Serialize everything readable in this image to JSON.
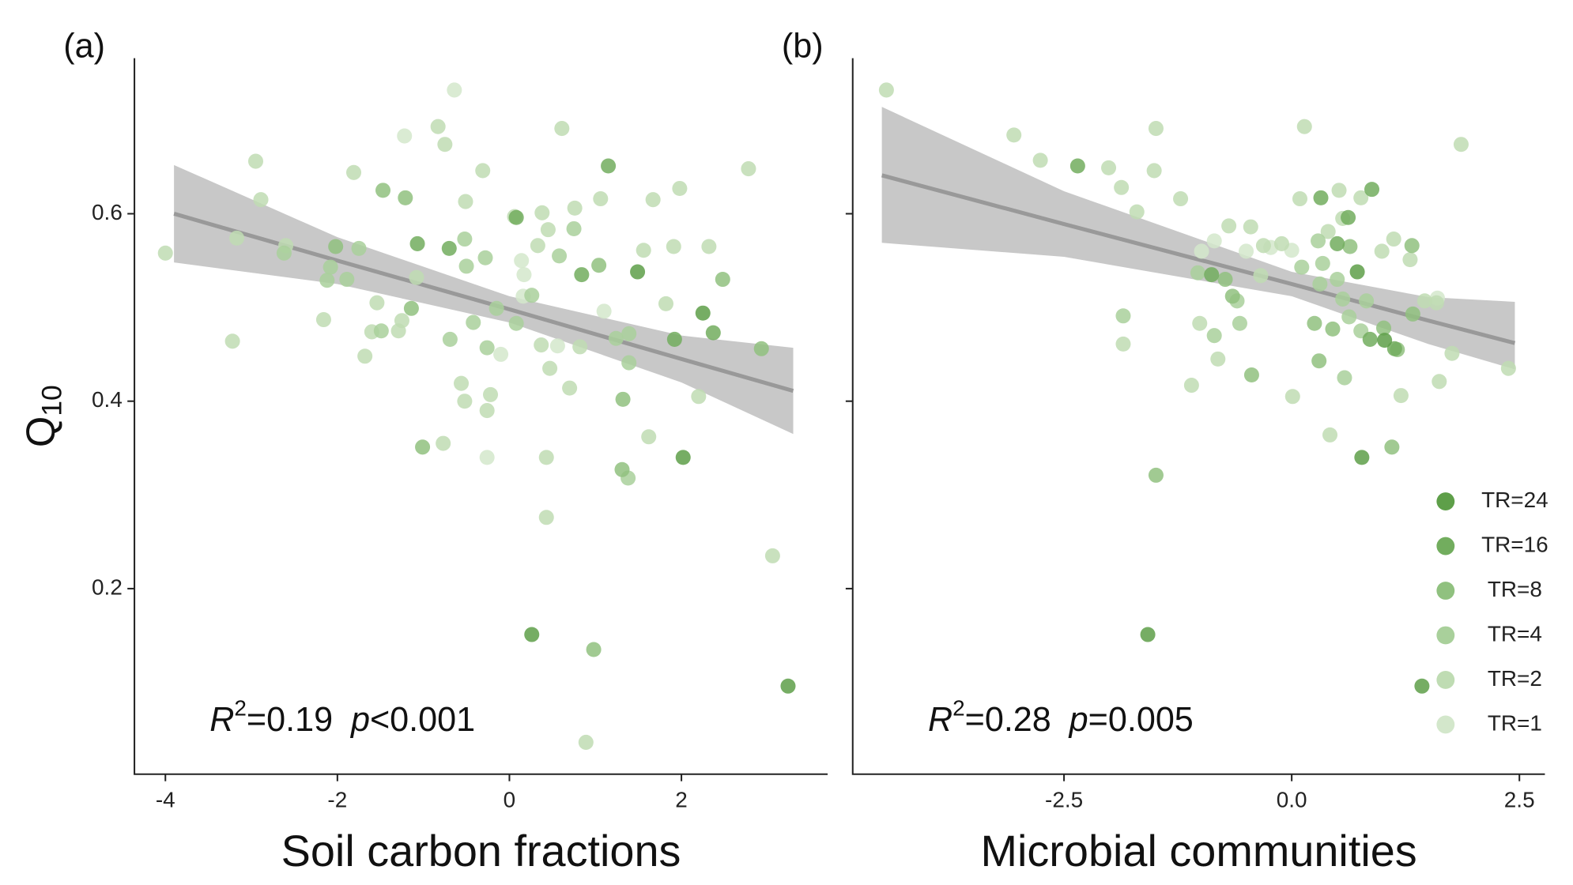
{
  "chart_data": [
    {
      "type": "scatter",
      "panel_label": "(a)",
      "xlabel": "Soil carbon fractions",
      "ylabel": "Q",
      "ylabel_sub": "10",
      "xlim": [
        -4.36,
        3.7
      ],
      "ylim": [
        0.002,
        0.766
      ],
      "xticks": [
        -4,
        -2,
        0,
        2
      ],
      "yticks": [
        0.2,
        0.4,
        0.6
      ],
      "annotation": [
        "R",
        "2",
        "=0.19",
        "p",
        "<0.001"
      ],
      "fit": {
        "color": "#999999",
        "band_color": "#c8c8c8",
        "x": [
          -3.9,
          -2,
          0,
          2,
          3.3
        ],
        "y": [
          0.6,
          0.55,
          0.498,
          0.445,
          0.411
        ],
        "lower": [
          0.548,
          0.525,
          0.484,
          0.42,
          0.365
        ],
        "upper": [
          0.652,
          0.575,
          0.512,
          0.47,
          0.457
        ]
      },
      "series": [
        {
          "color": "#5e9f49",
          "x": [
            0.26,
            2.02,
            3.24,
            1.49,
            2.25
          ],
          "values": [
            0.151,
            0.34,
            0.096,
            0.538,
            0.494
          ]
        },
        {
          "color": "#72ad5e",
          "x": [
            1.15,
            0.84,
            1.92,
            -0.7,
            -1.07,
            2.37,
            0.08
          ],
          "values": [
            0.651,
            0.535,
            0.466,
            0.563,
            0.568,
            0.473,
            0.596
          ]
        },
        {
          "color": "#90c17f",
          "x": [
            -1.47,
            -1.21,
            -2.02,
            1.32,
            1.31,
            0.98,
            -1.01,
            2.48,
            2.93,
            1.04,
            -1.14
          ],
          "values": [
            0.625,
            0.617,
            0.565,
            0.402,
            0.327,
            0.135,
            0.351,
            0.53,
            0.456,
            0.545,
            0.499
          ]
        },
        {
          "color": "#a9d09b",
          "x": [
            1.39,
            0.26,
            -0.42,
            0.08,
            -0.15,
            -0.26,
            -1.75,
            -1.49,
            1.39,
            -0.69,
            -0.28,
            1.24,
            0.58,
            0.75,
            -0.5,
            -2.08,
            -2.62,
            -2.12,
            -1.89,
            -0.52,
            1.38
          ],
          "values": [
            0.441,
            0.513,
            0.484,
            0.483,
            0.499,
            0.457,
            0.563,
            0.475,
            0.472,
            0.466,
            0.553,
            0.467,
            0.555,
            0.584,
            0.544,
            0.543,
            0.558,
            0.529,
            0.53,
            0.573,
            0.318
          ]
        },
        {
          "color": "#bfdcb3",
          "x": [
            -2.95,
            -2.89,
            -2.6,
            -1.81,
            -1.54,
            -0.83,
            -0.75,
            -0.31,
            -0.51,
            0.06,
            0.38,
            0.76,
            1.06,
            1.56,
            1.67,
            1.91,
            1.98,
            2.32,
            1.82,
            2.78,
            0.82,
            0.7,
            0.47,
            0.43,
            -0.22,
            -0.26,
            -0.56,
            -0.52,
            -1.29,
            -1.6,
            -1.68,
            -1.25,
            -0.77,
            0.37,
            0.61,
            0.33,
            0.43,
            1.62,
            2.2,
            3.06,
            0.89,
            -3.22,
            -4.0,
            -3.17,
            -2.16,
            -1.08,
            0.45
          ],
          "values": [
            0.656,
            0.615,
            0.566,
            0.644,
            0.505,
            0.693,
            0.674,
            0.646,
            0.613,
            0.597,
            0.601,
            0.606,
            0.616,
            0.561,
            0.615,
            0.565,
            0.627,
            0.565,
            0.504,
            0.648,
            0.458,
            0.414,
            0.435,
            0.34,
            0.407,
            0.39,
            0.419,
            0.4,
            0.475,
            0.474,
            0.448,
            0.486,
            0.355,
            0.46,
            0.691,
            0.566,
            0.276,
            0.362,
            0.405,
            0.235,
            0.036,
            0.464,
            0.558,
            0.574,
            0.487,
            0.532,
            0.583
          ]
        },
        {
          "color": "#d3e7cb",
          "x": [
            -0.64,
            -1.22,
            -0.26,
            0.14,
            0.16,
            0.17,
            0.56,
            1.1,
            -0.1
          ],
          "values": [
            0.732,
            0.683,
            0.34,
            0.55,
            0.512,
            0.535,
            0.459,
            0.496,
            0.45
          ]
        }
      ]
    },
    {
      "type": "scatter",
      "panel_label": "(b)",
      "xlabel": "Microbial communities",
      "xlim": [
        -4.82,
        2.78
      ],
      "ylim": [
        0.002,
        0.766
      ],
      "xticks": [
        -2.5,
        {
          "value": 0,
          "label": "0.0"
        },
        2.5
      ],
      "yticks": [
        0.2,
        0.4,
        0.6
      ],
      "ytick_labels": false,
      "legend": "lower right",
      "annotation": [
        "R",
        "2",
        "=0.28",
        "p",
        "=0.005"
      ],
      "fit": {
        "color": "#999999",
        "band_color": "#c8c8c8",
        "x": [
          -4.5,
          -2.5,
          0,
          1.5,
          2.45
        ],
        "y": [
          0.641,
          0.589,
          0.525,
          0.486,
          0.462
        ],
        "lower": [
          0.569,
          0.554,
          0.512,
          0.461,
          0.434
        ],
        "upper": [
          0.714,
          0.624,
          0.538,
          0.511,
          0.506
        ]
      },
      "series": [
        {
          "name": "TR=24",
          "color": "#5e9f49",
          "x": [
            -1.58,
            0.77,
            1.43,
            0.72,
            1.02
          ],
          "values": [
            0.151,
            0.34,
            0.096,
            0.538,
            0.465
          ]
        },
        {
          "name": "TR=16",
          "color": "#72ad5e",
          "x": [
            -2.35,
            0.88,
            0.32,
            0.62,
            0.86,
            1.13,
            0.5,
            -0.88
          ],
          "values": [
            0.651,
            0.626,
            0.617,
            0.596,
            0.466,
            0.456,
            0.568,
            0.535
          ]
        },
        {
          "name": "TR=8",
          "color": "#90c17f",
          "x": [
            0.3,
            -0.44,
            0.25,
            0.45,
            1.01,
            1.33,
            1.32,
            -0.65,
            -0.73,
            1.1,
            -1.49,
            1.16,
            0.64
          ],
          "values": [
            0.443,
            0.428,
            0.483,
            0.477,
            0.478,
            0.493,
            0.566,
            0.512,
            0.53,
            0.351,
            0.321,
            0.455,
            0.565
          ]
        },
        {
          "name": "TR=4",
          "color": "#a9d09b",
          "x": [
            0.56,
            0.31,
            0.11,
            0.34,
            0.5,
            0.82,
            0.58,
            0.29,
            -0.57,
            -0.85,
            -0.6,
            -1.03,
            0.76,
            -1.85,
            0.63
          ],
          "values": [
            0.509,
            0.525,
            0.543,
            0.547,
            0.53,
            0.507,
            0.425,
            0.571,
            0.483,
            0.47,
            0.507,
            0.537,
            0.475,
            0.491,
            0.49
          ]
        },
        {
          "name": "TR=2",
          "color": "#bfdcb3",
          "x": [
            -4.45,
            -3.05,
            -2.76,
            -2.01,
            -1.49,
            -1.51,
            -1.87,
            -1.7,
            -1.22,
            0.14,
            0.09,
            0.4,
            0.52,
            0.56,
            0.76,
            1.12,
            1.86,
            1.3,
            1.59,
            1.62,
            1.76,
            2.38,
            1.2,
            0.01,
            0.42,
            -0.81,
            -1.1,
            -1.85,
            -1.01,
            -0.31,
            -0.11,
            -0.34,
            -0.69,
            -0.45,
            1.46,
            0.99
          ],
          "values": [
            0.732,
            0.684,
            0.657,
            0.649,
            0.691,
            0.646,
            0.628,
            0.602,
            0.616,
            0.693,
            0.616,
            0.581,
            0.625,
            0.595,
            0.617,
            0.573,
            0.674,
            0.551,
            0.505,
            0.421,
            0.451,
            0.435,
            0.406,
            0.405,
            0.364,
            0.445,
            0.417,
            0.461,
            0.483,
            0.566,
            0.568,
            0.534,
            0.587,
            0.586,
            0.507,
            0.56
          ]
        },
        {
          "name": "TR=1",
          "color": "#d3e7cb",
          "x": [
            -0.23,
            0.0,
            -0.5,
            -0.99,
            -0.85,
            1.6
          ],
          "values": [
            0.564,
            0.561,
            0.56,
            0.56,
            0.571,
            0.51
          ]
        }
      ]
    }
  ]
}
